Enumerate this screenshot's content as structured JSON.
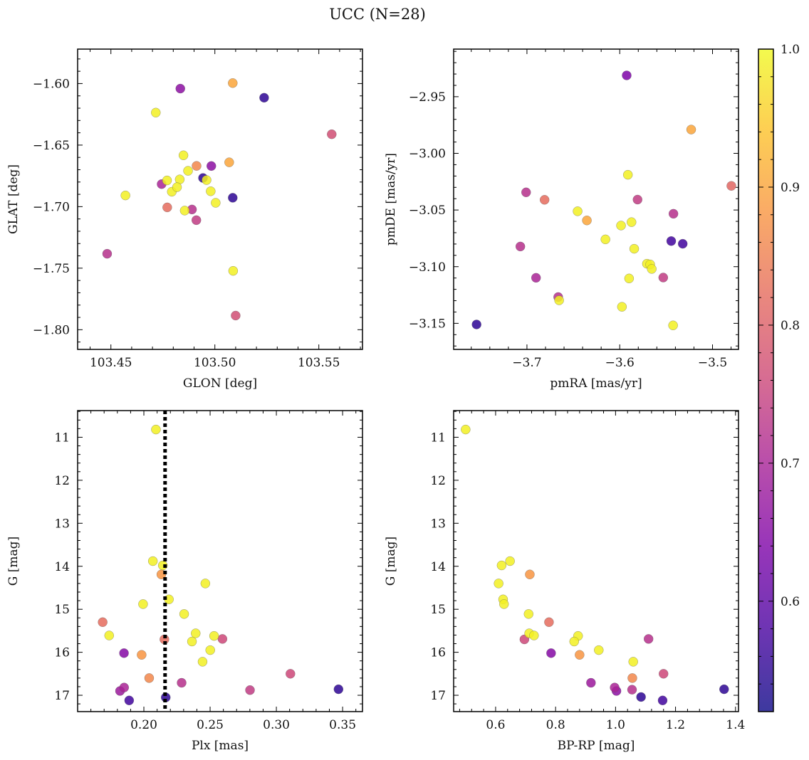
{
  "figure": {
    "title": "UCC (N=28)"
  },
  "colorbar": {
    "colormap": "plasma",
    "range": [
      0.52,
      1.0
    ],
    "ticks": [
      0.6,
      0.7,
      0.8,
      0.9,
      1.0
    ],
    "tick_labels": [
      "0.6",
      "0.7",
      "0.8",
      "0.9",
      "1.0"
    ]
  },
  "chart_data": [
    {
      "type": "scatter",
      "xlabel": "GLON [deg]",
      "ylabel": "GLAT [deg]",
      "xlim": [
        103.434,
        103.571
      ],
      "ylim": [
        -1.816,
        -1.572
      ],
      "xticks": [
        103.45,
        103.5,
        103.55
      ],
      "xtick_labels": [
        "103.45",
        "103.50",
        "103.55"
      ],
      "yticks": [
        -1.8,
        -1.75,
        -1.7,
        -1.65,
        -1.6
      ],
      "ytick_labels": [
        "−1.80",
        "−1.75",
        "−1.70",
        "−1.65",
        "−1.60"
      ],
      "points": [
        {
          "x": 103.4834,
          "y": -1.6041,
          "c": 0.66
        },
        {
          "x": 103.5086,
          "y": -1.5996,
          "c": 0.9
        },
        {
          "x": 103.5237,
          "y": -1.6115,
          "c": 0.55
        },
        {
          "x": 103.5562,
          "y": -1.6412,
          "c": 0.77
        },
        {
          "x": 103.4716,
          "y": -1.6236,
          "c": 0.99
        },
        {
          "x": 103.4849,
          "y": -1.6583,
          "c": 0.99
        },
        {
          "x": 103.4912,
          "y": -1.6669,
          "c": 0.86
        },
        {
          "x": 103.5069,
          "y": -1.664,
          "c": 0.9
        },
        {
          "x": 103.4744,
          "y": -1.6817,
          "c": 0.7
        },
        {
          "x": 103.477,
          "y": -1.6787,
          "c": 0.99
        },
        {
          "x": 103.4871,
          "y": -1.6709,
          "c": 0.99
        },
        {
          "x": 103.4943,
          "y": -1.6767,
          "c": 0.55
        },
        {
          "x": 103.496,
          "y": -1.6784,
          "c": 0.99
        },
        {
          "x": 103.4983,
          "y": -1.667,
          "c": 0.66
        },
        {
          "x": 103.4831,
          "y": -1.6779,
          "c": 0.99
        },
        {
          "x": 103.4793,
          "y": -1.6879,
          "c": 0.99
        },
        {
          "x": 103.4818,
          "y": -1.6842,
          "c": 0.99
        },
        {
          "x": 103.498,
          "y": -1.6875,
          "c": 0.99
        },
        {
          "x": 103.5086,
          "y": -1.6928,
          "c": 0.55
        },
        {
          "x": 103.457,
          "y": -1.6909,
          "c": 0.99
        },
        {
          "x": 103.4771,
          "y": -1.7006,
          "c": 0.82
        },
        {
          "x": 103.4855,
          "y": -1.7032,
          "c": 0.99
        },
        {
          "x": 103.489,
          "y": -1.7023,
          "c": 0.72
        },
        {
          "x": 103.5004,
          "y": -1.6969,
          "c": 0.99
        },
        {
          "x": 103.4911,
          "y": -1.711,
          "c": 0.74
        },
        {
          "x": 103.4482,
          "y": -1.7383,
          "c": 0.72
        },
        {
          "x": 103.5088,
          "y": -1.7522,
          "c": 0.99
        },
        {
          "x": 103.51,
          "y": -1.7885,
          "c": 0.77
        }
      ]
    },
    {
      "type": "scatter",
      "xlabel": "pmRA [mas/yr]",
      "ylabel": "pmDE [mas/yr]",
      "xlim": [
        -3.779,
        -3.472
      ],
      "ylim": [
        -3.173,
        -2.908
      ],
      "xticks": [
        -3.7,
        -3.6,
        -3.5
      ],
      "xtick_labels": [
        "−3.7",
        "−3.6",
        "−3.5"
      ],
      "yticks": [
        -3.15,
        -3.1,
        -3.05,
        -3.0,
        -2.95
      ],
      "ytick_labels": [
        "−3.15",
        "−3.10",
        "−3.05",
        "−3.00",
        "−2.95"
      ],
      "points": [
        {
          "x": -3.5925,
          "y": -2.9312,
          "c": 0.64
        },
        {
          "x": -3.523,
          "y": -2.979,
          "c": 0.9
        },
        {
          "x": -3.4797,
          "y": -3.0287,
          "c": 0.81
        },
        {
          "x": -3.5912,
          "y": -3.0189,
          "c": 0.99
        },
        {
          "x": -3.7009,
          "y": -3.0344,
          "c": 0.72
        },
        {
          "x": -3.681,
          "y": -3.041,
          "c": 0.82
        },
        {
          "x": -3.5808,
          "y": -3.0408,
          "c": 0.74
        },
        {
          "x": -3.6454,
          "y": -3.0511,
          "c": 0.99
        },
        {
          "x": -3.6354,
          "y": -3.0592,
          "c": 0.9
        },
        {
          "x": -3.5873,
          "y": -3.0607,
          "c": 0.99
        },
        {
          "x": -3.5986,
          "y": -3.0637,
          "c": 0.99
        },
        {
          "x": -3.5421,
          "y": -3.0533,
          "c": 0.72
        },
        {
          "x": -3.6154,
          "y": -3.0759,
          "c": 0.99
        },
        {
          "x": -3.5445,
          "y": -3.0774,
          "c": 0.57
        },
        {
          "x": -3.5321,
          "y": -3.0798,
          "c": 0.57
        },
        {
          "x": -3.7071,
          "y": -3.0822,
          "c": 0.72
        },
        {
          "x": -3.5844,
          "y": -3.0842,
          "c": 0.99
        },
        {
          "x": -3.5707,
          "y": -3.0974,
          "c": 0.99
        },
        {
          "x": -3.5672,
          "y": -3.098,
          "c": 0.99
        },
        {
          "x": -3.5655,
          "y": -3.102,
          "c": 0.99
        },
        {
          "x": -3.5531,
          "y": -3.1096,
          "c": 0.74
        },
        {
          "x": -3.6902,
          "y": -3.1098,
          "c": 0.7
        },
        {
          "x": -3.5899,
          "y": -3.1104,
          "c": 0.99
        },
        {
          "x": -3.6663,
          "y": -3.1268,
          "c": 0.72
        },
        {
          "x": -3.6653,
          "y": -3.1297,
          "c": 0.99
        },
        {
          "x": -3.5976,
          "y": -3.1354,
          "c": 0.99
        },
        {
          "x": -3.5425,
          "y": -3.1518,
          "c": 0.99
        },
        {
          "x": -3.7543,
          "y": -3.151,
          "c": 0.55
        }
      ]
    },
    {
      "type": "scatter",
      "xlabel": "Plx [mas]",
      "ylabel": "G [mag]",
      "xlim": [
        0.15,
        0.365
      ],
      "ylim": [
        17.38,
        10.38
      ],
      "xticks": [
        0.2,
        0.25,
        0.3,
        0.35
      ],
      "xtick_labels": [
        "0.20",
        "0.25",
        "0.30",
        "0.35"
      ],
      "yticks": [
        11,
        12,
        13,
        14,
        15,
        16,
        17
      ],
      "ytick_labels": [
        "11",
        "12",
        "13",
        "14",
        "15",
        "16",
        "17"
      ],
      "vline": {
        "x": 0.216,
        "style": "dotted",
        "color": "#000000"
      },
      "points": [
        {
          "x": 0.2091,
          "y": 10.82,
          "c": 0.99
        },
        {
          "x": 0.2068,
          "y": 13.88,
          "c": 0.99
        },
        {
          "x": 0.2143,
          "y": 13.98,
          "c": 0.99
        },
        {
          "x": 0.2132,
          "y": 14.19,
          "c": 0.88
        },
        {
          "x": 0.2464,
          "y": 14.4,
          "c": 0.99
        },
        {
          "x": 0.2189,
          "y": 14.77,
          "c": 0.99
        },
        {
          "x": 0.1994,
          "y": 14.88,
          "c": 0.99
        },
        {
          "x": 0.2304,
          "y": 15.11,
          "c": 0.99
        },
        {
          "x": 0.1689,
          "y": 15.3,
          "c": 0.82
        },
        {
          "x": 0.1738,
          "y": 15.61,
          "c": 0.99
        },
        {
          "x": 0.2391,
          "y": 15.56,
          "c": 0.99
        },
        {
          "x": 0.253,
          "y": 15.62,
          "c": 0.99
        },
        {
          "x": 0.2593,
          "y": 15.69,
          "c": 0.76
        },
        {
          "x": 0.2155,
          "y": 15.7,
          "c": 0.82
        },
        {
          "x": 0.2363,
          "y": 15.75,
          "c": 0.99
        },
        {
          "x": 0.2501,
          "y": 15.95,
          "c": 0.99
        },
        {
          "x": 0.185,
          "y": 16.02,
          "c": 0.65
        },
        {
          "x": 0.1983,
          "y": 16.06,
          "c": 0.88
        },
        {
          "x": 0.2443,
          "y": 16.22,
          "c": 0.99
        },
        {
          "x": 0.3106,
          "y": 16.5,
          "c": 0.76
        },
        {
          "x": 0.204,
          "y": 16.6,
          "c": 0.86
        },
        {
          "x": 0.2285,
          "y": 16.71,
          "c": 0.72
        },
        {
          "x": 0.1851,
          "y": 16.82,
          "c": 0.7
        },
        {
          "x": 0.182,
          "y": 16.9,
          "c": 0.68
        },
        {
          "x": 0.2801,
          "y": 16.88,
          "c": 0.74
        },
        {
          "x": 0.3469,
          "y": 16.86,
          "c": 0.55
        },
        {
          "x": 0.2165,
          "y": 17.05,
          "c": 0.55
        },
        {
          "x": 0.1889,
          "y": 17.12,
          "c": 0.57
        }
      ]
    },
    {
      "type": "scatter",
      "xlabel": "BP-RP [mag]",
      "ylabel": "G [mag]",
      "xlim": [
        0.46,
        1.41
      ],
      "ylim": [
        17.38,
        10.38
      ],
      "xticks": [
        0.6,
        0.8,
        1.0,
        1.2,
        1.4
      ],
      "xtick_labels": [
        "0.6",
        "0.8",
        "1.0",
        "1.2",
        "1.4"
      ],
      "yticks": [
        11,
        12,
        13,
        14,
        15,
        16,
        17
      ],
      "ytick_labels": [
        "11",
        "12",
        "13",
        "14",
        "15",
        "16",
        "17"
      ],
      "points": [
        {
          "x": 0.5,
          "y": 10.82,
          "c": 0.99
        },
        {
          "x": 0.62,
          "y": 13.98,
          "c": 0.99
        },
        {
          "x": 0.648,
          "y": 13.88,
          "c": 0.99
        },
        {
          "x": 0.714,
          "y": 14.19,
          "c": 0.88
        },
        {
          "x": 0.61,
          "y": 14.4,
          "c": 0.99
        },
        {
          "x": 0.625,
          "y": 14.77,
          "c": 0.99
        },
        {
          "x": 0.628,
          "y": 14.88,
          "c": 0.99
        },
        {
          "x": 0.71,
          "y": 15.11,
          "c": 0.99
        },
        {
          "x": 0.778,
          "y": 15.3,
          "c": 0.82
        },
        {
          "x": 0.712,
          "y": 15.56,
          "c": 0.99
        },
        {
          "x": 0.728,
          "y": 15.61,
          "c": 0.99
        },
        {
          "x": 0.875,
          "y": 15.62,
          "c": 0.99
        },
        {
          "x": 0.696,
          "y": 15.7,
          "c": 0.76
        },
        {
          "x": 1.11,
          "y": 15.69,
          "c": 0.72
        },
        {
          "x": 0.862,
          "y": 15.75,
          "c": 0.99
        },
        {
          "x": 0.944,
          "y": 15.95,
          "c": 0.99
        },
        {
          "x": 0.785,
          "y": 16.02,
          "c": 0.65
        },
        {
          "x": 0.88,
          "y": 16.06,
          "c": 0.88
        },
        {
          "x": 1.059,
          "y": 16.22,
          "c": 0.99
        },
        {
          "x": 1.16,
          "y": 16.5,
          "c": 0.76
        },
        {
          "x": 1.056,
          "y": 16.6,
          "c": 0.86
        },
        {
          "x": 0.918,
          "y": 16.71,
          "c": 0.68
        },
        {
          "x": 0.997,
          "y": 16.82,
          "c": 0.7
        },
        {
          "x": 1.055,
          "y": 16.87,
          "c": 0.72
        },
        {
          "x": 1.003,
          "y": 16.9,
          "c": 0.66
        },
        {
          "x": 1.362,
          "y": 16.86,
          "c": 0.55
        },
        {
          "x": 1.085,
          "y": 17.04,
          "c": 0.55
        },
        {
          "x": 1.157,
          "y": 17.12,
          "c": 0.57
        }
      ]
    }
  ]
}
